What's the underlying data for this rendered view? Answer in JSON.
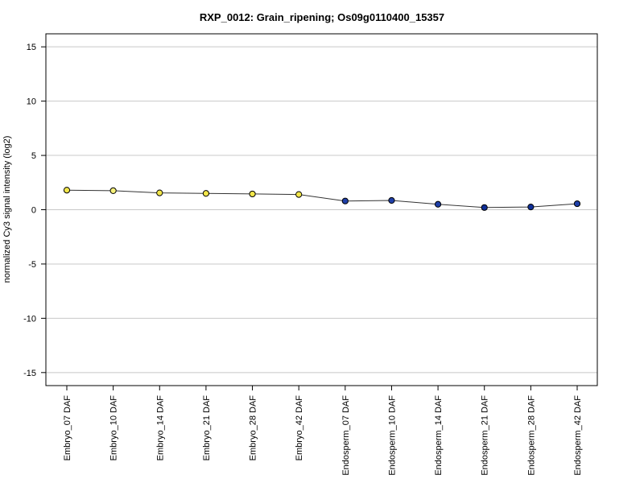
{
  "chart_data": {
    "type": "line",
    "title": "RXP_0012: Grain_ripening; Os09g0110400_15357",
    "xlabel": "",
    "ylabel": "normalized Cy3 signal intensity (log2)",
    "ylim": [
      -16.2,
      16.2
    ],
    "yticks": [
      15,
      10,
      5,
      0,
      -5,
      -10,
      -15
    ],
    "grid": true,
    "categories": [
      "Embryo_07 DAF",
      "Embryo_10 DAF",
      "Embryo_14 DAF",
      "Embryo_21 DAF",
      "Embryo_28 DAF",
      "Embryo_42 DAF",
      "Endosperm_07 DAF",
      "Endosperm_10 DAF",
      "Endosperm_14 DAF",
      "Endosperm_21 DAF",
      "Endosperm_28 DAF",
      "Endosperm_42 DAF"
    ],
    "series": [
      {
        "values": [
          1.8,
          1.75,
          1.55,
          1.5,
          1.45,
          1.4,
          0.8,
          0.85,
          0.5,
          0.2,
          0.25,
          0.55
        ],
        "point_colors": [
          "#f2e64a",
          "#f5f07a",
          "#f2e64a",
          "#f2e64a",
          "#f2e64a",
          "#f2e64a",
          "#1f3fa8",
          "#1f3fa8",
          "#1f3fa8",
          "#0f2f98",
          "#0f2f98",
          "#1f3fa8"
        ],
        "line_color": "#333333"
      }
    ]
  }
}
